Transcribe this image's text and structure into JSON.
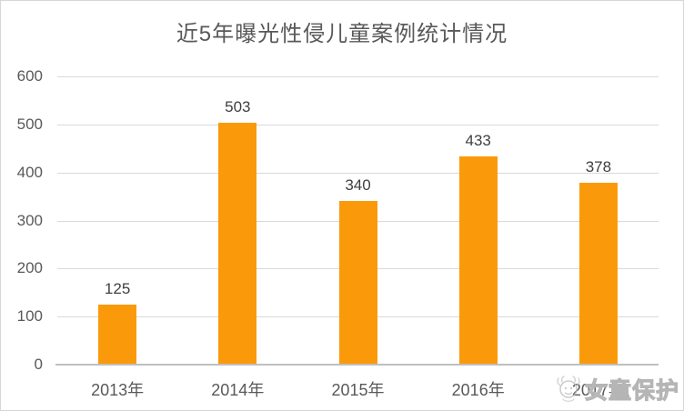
{
  "chart_data": {
    "type": "bar",
    "title": "近5年曝光性侵儿童案例统计情况",
    "categories": [
      "2013年",
      "2014年",
      "2015年",
      "2016年",
      "2017年"
    ],
    "values": [
      125,
      503,
      340,
      433,
      378
    ],
    "xlabel": "",
    "ylabel": "",
    "ylim": [
      0,
      600
    ],
    "yticks": [
      0,
      100,
      200,
      300,
      400,
      500,
      600
    ],
    "grid": "horizontal",
    "legend_position": "none",
    "bar_color": "#fa9a0b",
    "gridline_color": "#d9d9d9",
    "axis_line_color": "#bfbfbf",
    "title_color": "#595959",
    "axis_label_color": "#595959",
    "data_label_color": "#404040"
  },
  "watermark": {
    "text": "女童保护",
    "logo": "girl-face-logo"
  }
}
